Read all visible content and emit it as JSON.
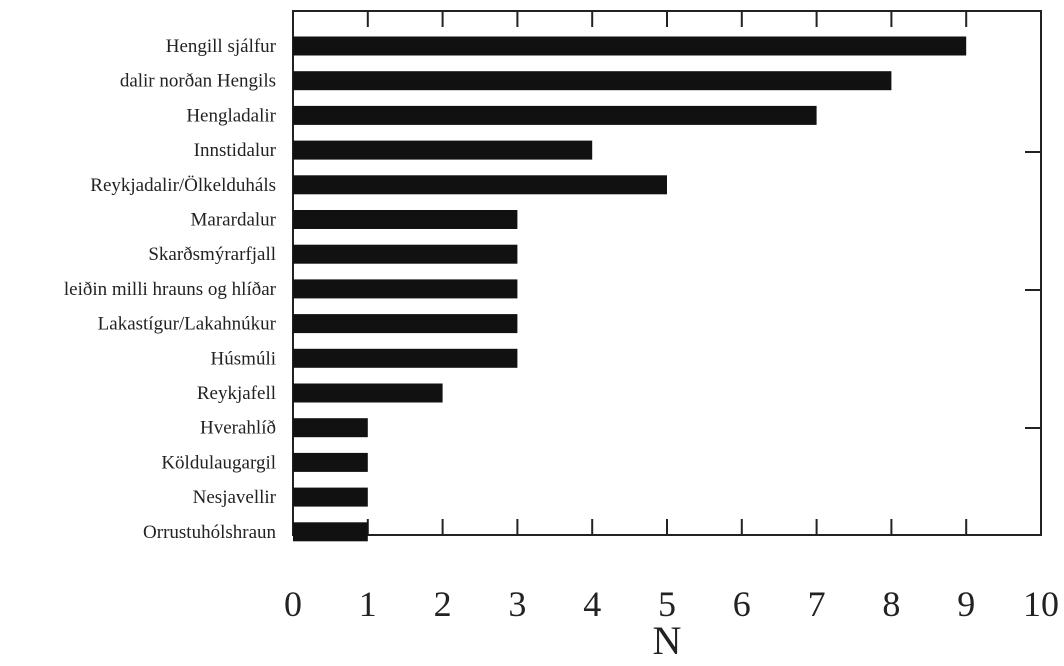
{
  "chart_data": {
    "type": "bar",
    "orientation": "horizontal",
    "categories": [
      "Hengill sjálfur",
      "dalir norðan Hengils",
      "Hengladalir",
      "Innstidalur",
      "Reykjadalir/Ölkelduháls",
      "Marardalur",
      "Skarðsmýrarfjall",
      "leiðin milli hrauns og hlíðar",
      "Lakastígur/Lakahnúkur",
      "Húsmúli",
      "Reykjafell",
      "Hverahlíð",
      "Köldulaugargil",
      "Nesjavellir",
      "Orrustuhólshraun"
    ],
    "values": [
      9,
      8,
      7,
      4,
      5,
      3,
      3,
      3,
      3,
      3,
      2,
      1,
      1,
      1,
      1
    ],
    "xlabel": "N",
    "ylabel": "",
    "xlim": [
      0,
      10
    ],
    "xticks": [
      "0",
      "1",
      "2",
      "3",
      "4",
      "5",
      "6",
      "7",
      "8",
      "9",
      "10"
    ],
    "grid": false,
    "bar_color": "#111111"
  }
}
